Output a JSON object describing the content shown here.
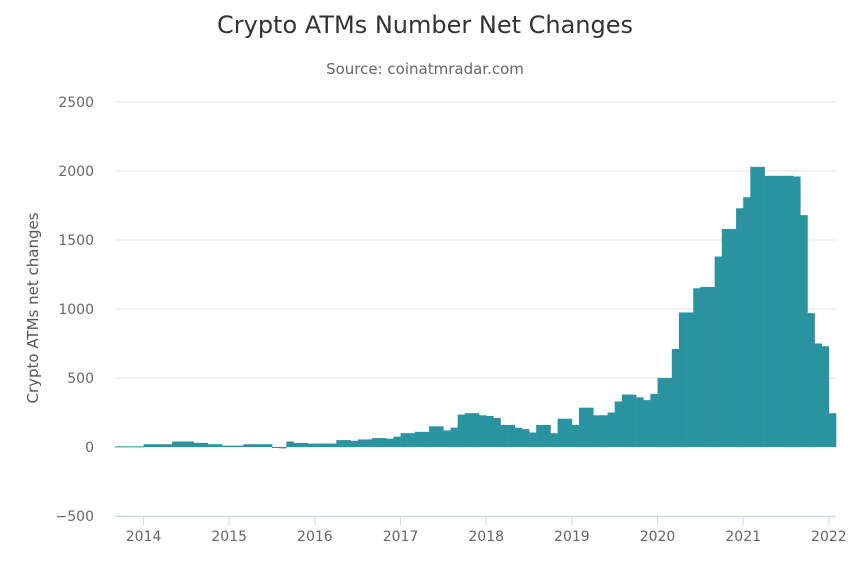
{
  "colors": {
    "bars": "#2b93a0",
    "grid": "#e3e3e3",
    "text": "#666666",
    "title": "#333333"
  },
  "chart_data": {
    "type": "bar",
    "title": "Crypto ATMs Number Net Changes",
    "subtitle": "Source: coinatmradar.com",
    "ylabel": "Crypto ATMs net changes",
    "xlabel": "",
    "ylim": [
      -500,
      2500
    ],
    "yticks": [
      -500,
      0,
      500,
      1000,
      1500,
      2000,
      2500
    ],
    "xticks": [
      "2014",
      "2015",
      "2016",
      "2017",
      "2018",
      "2019",
      "2020",
      "2021",
      "2022"
    ],
    "x_start": "2013-09",
    "x_end": "2022-06",
    "grid": true,
    "legend": "none",
    "series": [
      {
        "values": [
          5,
          5,
          5,
          5,
          20,
          20,
          20,
          20,
          40,
          40,
          40,
          30,
          30,
          20,
          20,
          10,
          10,
          10,
          20,
          20,
          20,
          20,
          0,
          -10,
          40,
          30,
          30,
          25,
          25,
          25,
          25,
          50,
          50,
          45,
          55,
          55,
          65,
          65,
          60,
          75,
          100,
          100,
          110,
          110,
          150,
          150,
          120,
          140,
          235,
          245,
          245,
          230,
          225,
          210,
          160,
          160,
          140,
          130,
          105,
          160,
          160,
          100,
          205,
          205,
          160,
          285,
          285,
          230,
          230,
          250,
          330,
          380,
          380,
          360,
          340,
          385,
          500,
          500,
          710,
          975,
          975,
          1150,
          1160,
          1160,
          1380,
          1580,
          1580,
          1730,
          1810,
          2030,
          2030,
          1965,
          1965,
          1965,
          1965,
          1960,
          1680,
          970,
          750,
          730,
          245
        ]
      }
    ]
  }
}
